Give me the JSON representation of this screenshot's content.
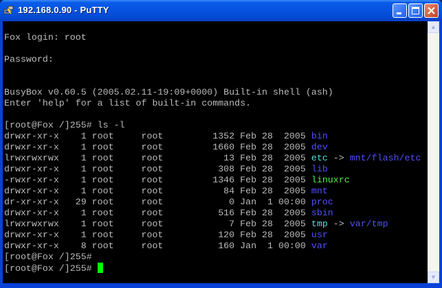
{
  "window": {
    "title": "192.168.0.90 - PuTTY"
  },
  "colors": {
    "text": "#bbbbbb",
    "dir": "#5050ff",
    "link": "#55dddd",
    "exec": "#55ee55",
    "cursor": "#00ff00"
  },
  "icons": {
    "app": "putty-icon",
    "minimize": "minimize-icon",
    "maximize": "maximize-icon",
    "close": "close-icon"
  },
  "terminal": {
    "lines": [
      [],
      [
        {
          "t": "Fox login: root"
        }
      ],
      [],
      [
        {
          "t": "Password:"
        }
      ],
      [],
      [],
      [
        {
          "t": "BusyBox v0.60.5 (2005.02.11-19:09+0000) Built-in shell (ash)"
        }
      ],
      [
        {
          "t": "Enter 'help' for a list of built-in commands."
        }
      ],
      [],
      [
        {
          "t": "[root@Fox /]255# ls -l"
        }
      ],
      [
        {
          "t": "drwxr-xr-x    1 root     root         1352 Feb 28  2005 "
        },
        {
          "t": "bin",
          "c": "dir"
        }
      ],
      [
        {
          "t": "drwxr-xr-x    1 root     root         1660 Feb 28  2005 "
        },
        {
          "t": "dev",
          "c": "dir"
        }
      ],
      [
        {
          "t": "lrwxrwxrwx    1 root     root           13 Feb 28  2005 "
        },
        {
          "t": "etc",
          "c": "link"
        },
        {
          "t": " -> "
        },
        {
          "t": "mnt/flash/etc",
          "c": "dir"
        }
      ],
      [
        {
          "t": "drwxr-xr-x    1 root     root          308 Feb 28  2005 "
        },
        {
          "t": "lib",
          "c": "dir"
        }
      ],
      [
        {
          "t": "-rwxr-xr-x    1 root     root         1346 Feb 28  2005 "
        },
        {
          "t": "linuxrc",
          "c": "exec"
        }
      ],
      [
        {
          "t": "drwxr-xr-x    1 root     root           84 Feb 28  2005 "
        },
        {
          "t": "mnt",
          "c": "dir"
        }
      ],
      [
        {
          "t": "dr-xr-xr-x   29 root     root            0 Jan  1 00:00 "
        },
        {
          "t": "proc",
          "c": "dir"
        }
      ],
      [
        {
          "t": "drwxr-xr-x    1 root     root          516 Feb 28  2005 "
        },
        {
          "t": "sbin",
          "c": "dir"
        }
      ],
      [
        {
          "t": "lrwxrwxrwx    1 root     root            7 Feb 28  2005 "
        },
        {
          "t": "tmp",
          "c": "link"
        },
        {
          "t": " -> "
        },
        {
          "t": "var/tmp",
          "c": "dir"
        }
      ],
      [
        {
          "t": "drwxr-xr-x    1 root     root          120 Feb 28  2005 "
        },
        {
          "t": "usr",
          "c": "dir"
        }
      ],
      [
        {
          "t": "drwxr-xr-x    8 root     root          160 Jan  1 00:00 "
        },
        {
          "t": "var",
          "c": "dir"
        }
      ],
      [
        {
          "t": "[root@Fox /]255#"
        }
      ],
      [
        {
          "t": "[root@Fox /]255# "
        },
        {
          "cursor": true
        }
      ]
    ]
  }
}
